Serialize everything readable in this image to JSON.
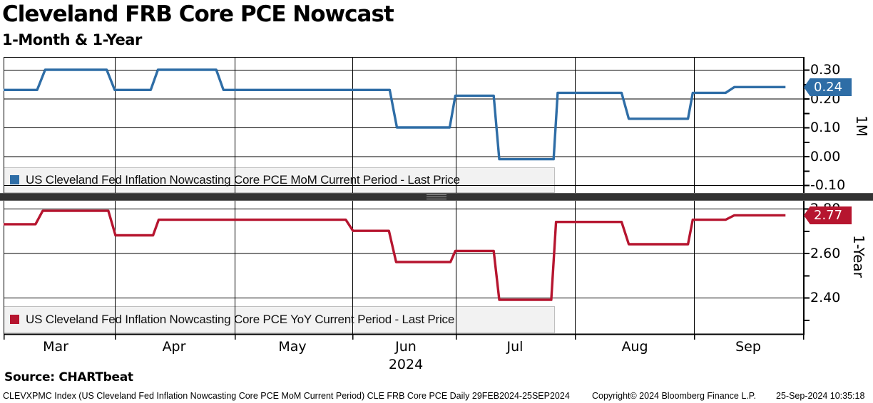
{
  "header": {
    "title": "Cleveland FRB Core PCE Nowcast",
    "subtitle": "1-Month & 1-Year"
  },
  "panels": {
    "top": {
      "axis_label": "1M",
      "legend": "US Cleveland Fed Inflation Nowcasting Core PCE MoM Current Period - Last Price",
      "line_color": "#2e6da6",
      "badge": {
        "value": "0.24",
        "color": "#2e6da6"
      },
      "y_ticks": [
        {
          "value": 0.3,
          "label": "0.30"
        },
        {
          "value": 0.2,
          "label": "0.20"
        },
        {
          "value": 0.1,
          "label": "0.10"
        },
        {
          "value": 0.0,
          "label": "0.00"
        },
        {
          "value": -0.1,
          "label": "-0.10"
        }
      ]
    },
    "bottom": {
      "axis_label": "1-Year",
      "legend": "US Cleveland Fed Inflation Nowcasting Core PCE YoY Current Period - Last Price",
      "line_color": "#b6152f",
      "badge": {
        "value": "2.77",
        "color": "#b6152f"
      },
      "y_ticks": [
        {
          "value": 2.8,
          "label": "2.80"
        },
        {
          "value": 2.6,
          "label": "2.60"
        },
        {
          "value": 2.4,
          "label": "2.40"
        }
      ]
    }
  },
  "x_axis": {
    "months": [
      "Mar",
      "Apr",
      "May",
      "Jun",
      "Jul",
      "Aug",
      "Sep"
    ],
    "year": "2024"
  },
  "footer": {
    "source": "Source: CHARTbeat",
    "meta_left": "CLEVXPMC Index (US Cleveland Fed Inflation Nowcasting Core PCE MoM Current Period) CLE FRB Core PCE  Daily 29FEB2024-25SEP2024",
    "copyright": "Copyright© 2024 Bloomberg Finance L.P.",
    "timestamp": "25-Sep-2024 10:35:18"
  },
  "chart_data": [
    {
      "type": "line",
      "name": "US Cleveland Fed Inflation Nowcasting Core PCE MoM Current Period - Last Price",
      "axis": "1M",
      "units": "percent MoM",
      "x_domain": "29FEB2024-25SEP2024",
      "x_encoding": "fraction of horizontal axis; 0 = 29FEB2024, series ends at 0.978 = 25SEP2024",
      "ylim": [
        -0.12,
        0.35
      ],
      "y_gridlines": [
        0.3,
        0.2,
        0.1,
        0.0,
        -0.1
      ],
      "y_minor_tick_step": 0.05,
      "last_value": 0.24,
      "points": [
        [
          0.0,
          0.23
        ],
        [
          0.042,
          0.23
        ],
        [
          0.052,
          0.3
        ],
        [
          0.129,
          0.3
        ],
        [
          0.139,
          0.23
        ],
        [
          0.184,
          0.23
        ],
        [
          0.193,
          0.3
        ],
        [
          0.266,
          0.3
        ],
        [
          0.275,
          0.23
        ],
        [
          0.483,
          0.23
        ],
        [
          0.492,
          0.1
        ],
        [
          0.558,
          0.1
        ],
        [
          0.565,
          0.21
        ],
        [
          0.613,
          0.21
        ],
        [
          0.62,
          -0.01
        ],
        [
          0.688,
          -0.01
        ],
        [
          0.693,
          0.22
        ],
        [
          0.773,
          0.22
        ],
        [
          0.782,
          0.13
        ],
        [
          0.856,
          0.13
        ],
        [
          0.862,
          0.22
        ],
        [
          0.903,
          0.22
        ],
        [
          0.914,
          0.24
        ],
        [
          0.978,
          0.24
        ]
      ]
    },
    {
      "type": "line",
      "name": "US Cleveland Fed Inflation Nowcasting Core PCE YoY Current Period - Last Price",
      "axis": "1-Year",
      "units": "percent YoY",
      "x_domain": "29FEB2024-25SEP2024",
      "x_encoding": "fraction of horizontal axis; 0 = 29FEB2024, series ends at 0.978 = 25SEP2024",
      "ylim": [
        2.23,
        2.83
      ],
      "y_gridlines": [
        2.8,
        2.6,
        2.4
      ],
      "y_minor_tick_step": 0.1,
      "last_value": 2.77,
      "points": [
        [
          0.0,
          2.73
        ],
        [
          0.04,
          2.73
        ],
        [
          0.049,
          2.79
        ],
        [
          0.131,
          2.79
        ],
        [
          0.14,
          2.68
        ],
        [
          0.187,
          2.68
        ],
        [
          0.194,
          2.75
        ],
        [
          0.428,
          2.75
        ],
        [
          0.437,
          2.7
        ],
        [
          0.482,
          2.7
        ],
        [
          0.491,
          2.56
        ],
        [
          0.559,
          2.56
        ],
        [
          0.565,
          2.61
        ],
        [
          0.613,
          2.61
        ],
        [
          0.62,
          2.39
        ],
        [
          0.685,
          2.39
        ],
        [
          0.691,
          2.74
        ],
        [
          0.773,
          2.74
        ],
        [
          0.782,
          2.64
        ],
        [
          0.856,
          2.64
        ],
        [
          0.862,
          2.75
        ],
        [
          0.903,
          2.75
        ],
        [
          0.914,
          2.77
        ],
        [
          0.978,
          2.77
        ]
      ]
    }
  ]
}
